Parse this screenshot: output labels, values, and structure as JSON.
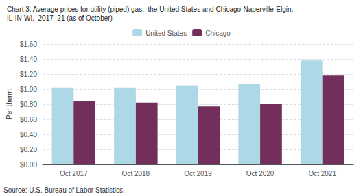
{
  "chart_data": {
    "type": "bar",
    "title": "Chart 3. Average prices for utility (piped) gas,  the United States and Chicago-Naperville-Elgin,",
    "subtitle": "IL-IN-WI,  2017–21 (as of October)",
    "ylabel": "Per therm",
    "source": "Source: U.S. Bureau of Labor Statistics.",
    "categories": [
      "Oct 2017",
      "Oct 2018",
      "Oct 2019",
      "Oct 2020",
      "Oct 2021"
    ],
    "series": [
      {
        "name": "United States",
        "color": "#add8e6",
        "values": [
          1.02,
          1.02,
          1.05,
          1.07,
          1.38
        ]
      },
      {
        "name": "Chicago",
        "color": "#722f5b",
        "values": [
          0.84,
          0.82,
          0.77,
          0.8,
          1.18
        ]
      }
    ],
    "ylim": [
      0.0,
      1.6
    ],
    "yticks": [
      {
        "value": 0.0,
        "label": "$0.00"
      },
      {
        "value": 0.2,
        "label": "$0.20"
      },
      {
        "value": 0.4,
        "label": "$0.40"
      },
      {
        "value": 0.6,
        "label": "$0.60"
      },
      {
        "value": 0.8,
        "label": "$0.80"
      },
      {
        "value": 1.0,
        "label": "$1.00"
      },
      {
        "value": 1.2,
        "label": "$1.20"
      },
      {
        "value": 1.4,
        "label": "$1.40"
      },
      {
        "value": 1.6,
        "label": "$1.60"
      }
    ],
    "grid": true,
    "legend": "top"
  }
}
